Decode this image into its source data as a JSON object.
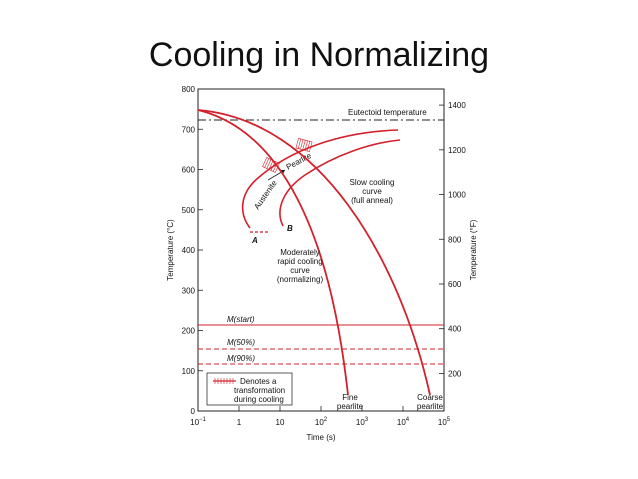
{
  "slide": {
    "title": "Cooling in Normalizing"
  },
  "colors": {
    "curve": "#d3202b",
    "axis": "#222222",
    "box": "#333333"
  },
  "axes": {
    "x_label": "Time (s)",
    "y_left_label": "Temperature (°C)",
    "y_right_label": "Temperature (°F)",
    "x_ticks": [
      {
        "base": "10",
        "exp": "−1",
        "value": 0.1
      },
      {
        "base": "1",
        "exp": "",
        "value": 1
      },
      {
        "base": "10",
        "exp": "",
        "value": 10
      },
      {
        "base": "10",
        "exp": "2",
        "value": 100
      },
      {
        "base": "10",
        "exp": "3",
        "value": 1000
      },
      {
        "base": "10",
        "exp": "4",
        "value": 10000
      },
      {
        "base": "10",
        "exp": "5",
        "value": 100000
      }
    ],
    "y_left_ticks": [
      "0",
      "100",
      "200",
      "300",
      "400",
      "500",
      "600",
      "700",
      "800"
    ],
    "y_right_ticks": [
      "200",
      "400",
      "600",
      "800",
      "1000",
      "1200",
      "1400"
    ],
    "y_range_c": [
      0,
      800
    ],
    "x_range_log": [
      -1,
      5
    ]
  },
  "labels": {
    "eutectoid": "Eutectoid temperature",
    "austenite": "Austenite",
    "pearlite": "Pearlite",
    "point_a": "A",
    "point_b": "B",
    "slow_cooling": [
      "Slow cooling",
      "curve",
      "(full anneal)"
    ],
    "moderate_cooling": [
      "Moderately",
      "rapid cooling",
      "curve",
      "(normalizing)"
    ],
    "m_start": "M(start)",
    "m_50": "M(50%)",
    "m_90": "M(90%)",
    "fine_pearlite": [
      "Fine",
      "pearlite"
    ],
    "coarse_pearlite": [
      "Coarse",
      "pearlite"
    ],
    "legend": [
      "Denotes a",
      "transformation",
      "during cooling"
    ]
  },
  "levels": {
    "eutectoid_c": 727,
    "m_start_c": 220,
    "m_50_c": 160,
    "m_90_c": 125
  }
}
